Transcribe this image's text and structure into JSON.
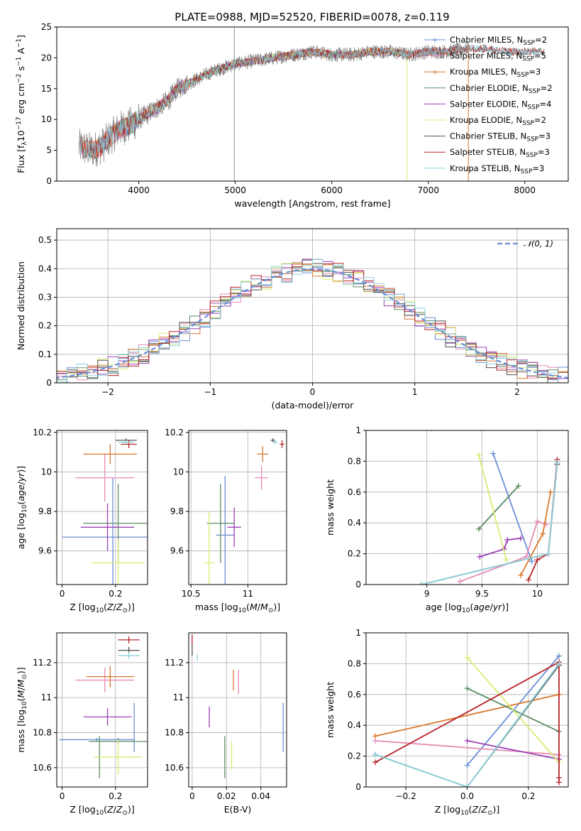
{
  "title": "PLATE=0988, MJD=52520, FIBERID=0078, z=0.119",
  "models": [
    {
      "label": "Chabrier MILES, N<sub>SSP</sub>=2",
      "color": "#6c8ed8"
    },
    {
      "label": "Salpeter MILES, N<sub>SSP</sub>=5",
      "color": "#e58bb5"
    },
    {
      "label": "Kroupa MILES, N<sub>SSP</sub>=3",
      "color": "#d9782d"
    },
    {
      "label": "Chabrier ELODIE, N<sub>SSP</sub>=2",
      "color": "#5a8d62"
    },
    {
      "label": "Salpeter ELODIE, N<sub>SSP</sub>=4",
      "color": "#9c3fb6"
    },
    {
      "label": "Kroupa ELODIE, N<sub>SSP</sub>=2",
      "color": "#d9eb70"
    },
    {
      "label": "Chabrier STELIB, N<sub>SSP</sub>=3",
      "color": "#505050"
    },
    {
      "label": "Salpeter STELIB, N<sub>SSP</sub>=3",
      "color": "#b8242a"
    },
    {
      "label": "Kroupa STELIB, N<sub>SSP</sub>=3",
      "color": "#8fd3de"
    }
  ],
  "chart_data": [
    {
      "id": "spectrum",
      "type": "line",
      "xlabel": "wavelength [Angstrom, rest frame]",
      "ylabel": "Flux [f<sub>λ</sub>10<sup>−17</sup> erg cm<sup>−2</sup> s<sup>−1</sup> A<sup>−1</sup>]",
      "xlim": [
        3150,
        8450
      ],
      "ylim": [
        0,
        25
      ],
      "xticks": [
        4000,
        5000,
        6000,
        7000,
        8000
      ],
      "yticks": [
        0,
        5,
        10,
        15,
        20,
        25
      ],
      "grid": false,
      "legend": "right",
      "data_color": "#808080",
      "continuum": {
        "x": [
          3400,
          3500,
          3600,
          3700,
          3800,
          3900,
          4000,
          4100,
          4200,
          4300,
          4400,
          4600,
          4800,
          5000,
          5200,
          5400,
          5600,
          5800,
          6000,
          6200,
          6400,
          6600,
          6800,
          7000,
          7200,
          7400,
          7600,
          7800,
          8000,
          8200
        ],
        "y": [
          5.5,
          5.0,
          5.5,
          7.0,
          8.5,
          9.0,
          10.0,
          11.0,
          12.0,
          13.0,
          15.0,
          16.5,
          18.0,
          19.0,
          19.5,
          20.0,
          20.5,
          21.0,
          20.5,
          20.5,
          21.0,
          21.0,
          20.5,
          21.0,
          21.0,
          21.5,
          21.5,
          21.0,
          21.0,
          21.0
        ]
      },
      "model_ranges": [
        [
          3400,
          7400
        ],
        [
          3400,
          7400
        ],
        [
          3400,
          7400
        ],
        [
          3900,
          6800
        ],
        [
          3900,
          6800
        ],
        [
          3900,
          6800
        ],
        [
          3400,
          8200
        ],
        [
          3400,
          8200
        ],
        [
          3400,
          8200
        ]
      ]
    },
    {
      "id": "residuals",
      "type": "line",
      "xlabel": "(data-model)/error",
      "ylabel": "Normed distribution",
      "xlim": [
        -2.5,
        2.5
      ],
      "ylim": [
        0,
        0.54
      ],
      "xticks": [
        -2,
        -1,
        0,
        1,
        2
      ],
      "xtick_labels": [
        "−2",
        "−1",
        "0",
        "1",
        "2"
      ],
      "yticks": [
        0,
        0.1,
        0.2,
        0.3,
        0.4,
        0.5
      ],
      "grid": true,
      "legend": "top-right",
      "reference": {
        "label": "𝒩(0, 1)",
        "mean": 0,
        "sigma": 1,
        "color": "#6a8fd8"
      }
    },
    {
      "id": "age-vs-Z",
      "type": "scatter",
      "xlabel": "Z [log<sub>10</sub>(<i>Z</i>/<i>Z</i><sub>⊙</sub>)]",
      "ylabel": "age  [log<sub>10</sub>(<i>age</i>/<i>yr</i>)]",
      "xlim": [
        -0.02,
        0.32
      ],
      "ylim": [
        9.43,
        10.21
      ],
      "xticks": [
        0.0,
        0.2
      ],
      "yticks": [
        9.6,
        9.8,
        10.0,
        10.2
      ],
      "grid": true,
      "points": [
        {
          "model": 0,
          "x": 0.19,
          "y": 9.67,
          "xerr": 0.19,
          "yerr": 0.3
        },
        {
          "model": 1,
          "x": 0.16,
          "y": 9.97,
          "xerr": 0.11,
          "yerr": 0.12
        },
        {
          "model": 2,
          "x": 0.18,
          "y": 10.09,
          "xerr": 0.1,
          "yerr": 0.05
        },
        {
          "model": 3,
          "x": 0.21,
          "y": 9.74,
          "xerr": 0.13,
          "yerr": 0.2
        },
        {
          "model": 4,
          "x": 0.17,
          "y": 9.72,
          "xerr": 0.1,
          "yerr": 0.12
        },
        {
          "model": 5,
          "x": 0.21,
          "y": 9.54,
          "xerr": 0.1,
          "yerr": 0.12
        },
        {
          "model": 6,
          "x": 0.24,
          "y": 10.16,
          "xerr": 0.04,
          "yerr": 0.01
        },
        {
          "model": 7,
          "x": 0.25,
          "y": 10.14,
          "xerr": 0.03,
          "yerr": 0.02
        },
        {
          "model": 8,
          "x": 0.24,
          "y": 10.15,
          "xerr": 0.03,
          "yerr": 0.01
        }
      ]
    },
    {
      "id": "age-vs-mass",
      "type": "scatter",
      "xlabel": "mass [log<sub>10</sub>(<i>M</i>/<i>M</i><sub>⊙</sub>)]",
      "ylabel": "",
      "xlim": [
        10.48,
        11.34
      ],
      "ylim": [
        9.43,
        10.21
      ],
      "xticks": [
        10.5,
        11.0
      ],
      "yticks": [
        9.6,
        9.8,
        10.0,
        10.2
      ],
      "grid": true,
      "points": [
        {
          "model": 0,
          "x": 10.8,
          "y": 9.68,
          "xerr": 0.08,
          "yerr": 0.3
        },
        {
          "model": 1,
          "x": 11.12,
          "y": 9.97,
          "xerr": 0.06,
          "yerr": 0.06
        },
        {
          "model": 2,
          "x": 11.13,
          "y": 10.09,
          "xerr": 0.05,
          "yerr": 0.04
        },
        {
          "model": 3,
          "x": 10.76,
          "y": 9.74,
          "xerr": 0.12,
          "yerr": 0.2
        },
        {
          "model": 4,
          "x": 10.88,
          "y": 9.72,
          "xerr": 0.06,
          "yerr": 0.1
        },
        {
          "model": 5,
          "x": 10.66,
          "y": 9.54,
          "xerr": 0.04,
          "yerr": 0.26
        },
        {
          "model": 6,
          "x": 11.22,
          "y": 10.16,
          "xerr": 0.02,
          "yerr": 0.01
        },
        {
          "model": 7,
          "x": 11.3,
          "y": 10.14,
          "xerr": 0.02,
          "yerr": 0.02
        },
        {
          "model": 8,
          "x": 11.24,
          "y": 10.15,
          "xerr": 0.02,
          "yerr": 0.01
        }
      ]
    },
    {
      "id": "weight-vs-age",
      "type": "line",
      "xlabel": "age  [log<sub>10</sub>(<i>age</i>/<i>yr</i>)]",
      "ylabel": "mass weight",
      "xlim": [
        8.45,
        10.28
      ],
      "ylim": [
        0,
        1.0
      ],
      "xticks": [
        9.0,
        9.5,
        10.0
      ],
      "yticks": [
        0,
        0.2,
        0.4,
        0.6,
        0.8,
        1.0
      ],
      "grid": true,
      "series": [
        {
          "model": 0,
          "x": [
            9.6,
            9.95
          ],
          "y": [
            0.85,
            0.15
          ]
        },
        {
          "model": 1,
          "x": [
            9.3,
            9.9,
            10.0,
            10.08
          ],
          "y": [
            0.02,
            0.18,
            0.41,
            0.39
          ]
        },
        {
          "model": 2,
          "x": [
            9.85,
            10.05,
            10.12
          ],
          "y": [
            0.06,
            0.33,
            0.6
          ]
        },
        {
          "model": 3,
          "x": [
            9.47,
            9.83
          ],
          "y": [
            0.36,
            0.64
          ]
        },
        {
          "model": 4,
          "x": [
            9.48,
            9.7,
            9.73,
            9.85
          ],
          "y": [
            0.18,
            0.23,
            0.29,
            0.3
          ]
        },
        {
          "model": 5,
          "x": [
            9.47,
            9.72
          ],
          "y": [
            0.84,
            0.16
          ]
        },
        {
          "model": 6,
          "x": [
            8.95,
            10.1,
            10.18
          ],
          "y": [
            0.0,
            0.2,
            0.78
          ]
        },
        {
          "model": 7,
          "x": [
            9.92,
            10.0,
            10.1,
            10.18
          ],
          "y": [
            0.03,
            0.16,
            0.2,
            0.81
          ]
        },
        {
          "model": 8,
          "x": [
            8.95,
            10.1,
            10.18
          ],
          "y": [
            0.0,
            0.2,
            0.79
          ]
        }
      ]
    },
    {
      "id": "mass-vs-Z",
      "type": "scatter",
      "xlabel": "Z [log<sub>10</sub>(<i>Z</i>/<i>Z</i><sub>⊙</sub>)]",
      "ylabel": "mass [log<sub>10</sub>(<i>M</i>/<i>M</i><sub>⊙</sub>)]",
      "xlim": [
        -0.02,
        0.32
      ],
      "ylim": [
        10.49,
        11.37
      ],
      "xticks": [
        0.0,
        0.2
      ],
      "yticks": [
        10.6,
        10.8,
        11.0,
        11.2
      ],
      "grid": true,
      "points": [
        {
          "model": 0,
          "x": 0.13,
          "y": 10.76,
          "xerr": 0.14,
          "yerr": 0.01
        },
        {
          "model": 0,
          "x": 0.27,
          "y": 10.83,
          "xerr": 0.0,
          "yerr": 0.14
        },
        {
          "model": 1,
          "x": 0.16,
          "y": 11.1,
          "xerr": 0.11,
          "yerr": 0.07
        },
        {
          "model": 2,
          "x": 0.18,
          "y": 11.12,
          "xerr": 0.09,
          "yerr": 0.06
        },
        {
          "model": 3,
          "x": 0.21,
          "y": 10.75,
          "xerr": 0.11,
          "yerr": 0.02
        },
        {
          "model": 3,
          "x": 0.14,
          "y": 10.66,
          "xerr": 0.0,
          "yerr": 0.12
        },
        {
          "model": 4,
          "x": 0.17,
          "y": 10.89,
          "xerr": 0.09,
          "yerr": 0.05
        },
        {
          "model": 5,
          "x": 0.21,
          "y": 10.66,
          "xerr": 0.09,
          "yerr": 0.1
        },
        {
          "model": 6,
          "x": 0.25,
          "y": 11.27,
          "xerr": 0.04,
          "yerr": 0.02
        },
        {
          "model": 7,
          "x": 0.25,
          "y": 11.33,
          "xerr": 0.04,
          "yerr": 0.02
        },
        {
          "model": 8,
          "x": 0.25,
          "y": 11.24,
          "xerr": 0.04,
          "yerr": 0.02
        }
      ]
    },
    {
      "id": "mass-vs-EBV",
      "type": "scatter",
      "xlabel": "E(B-V)",
      "ylabel": "",
      "xlim": [
        -0.002,
        0.055
      ],
      "ylim": [
        10.49,
        11.37
      ],
      "xticks": [
        0.0,
        0.02,
        0.04
      ],
      "yticks": [
        10.6,
        10.8,
        11.0,
        11.2
      ],
      "grid": true,
      "points": [
        {
          "model": 0,
          "x": 0.053,
          "y": 10.83,
          "xerr": 0,
          "yerr": 0.14
        },
        {
          "model": 1,
          "x": 0.027,
          "y": 11.09,
          "xerr": 0,
          "yerr": 0.07
        },
        {
          "model": 2,
          "x": 0.024,
          "y": 11.1,
          "xerr": 0,
          "yerr": 0.06
        },
        {
          "model": 3,
          "x": 0.019,
          "y": 10.66,
          "xerr": 0,
          "yerr": 0.12
        },
        {
          "model": 4,
          "x": 0.01,
          "y": 10.89,
          "xerr": 0,
          "yerr": 0.06
        },
        {
          "model": 5,
          "x": 0.023,
          "y": 10.67,
          "xerr": 0,
          "yerr": 0.08
        },
        {
          "model": 6,
          "x": 0.0,
          "y": 11.27,
          "xerr": 0,
          "yerr": 0.03
        },
        {
          "model": 7,
          "x": 0.0,
          "y": 11.33,
          "xerr": 0,
          "yerr": 0.03
        },
        {
          "model": 8,
          "x": 0.003,
          "y": 11.23,
          "xerr": 0,
          "yerr": 0.02
        }
      ]
    },
    {
      "id": "weight-vs-Z",
      "type": "line",
      "xlabel": "Z [log<sub>10</sub>(<i>Z</i>/<i>Z</i><sub>⊙</sub>)]",
      "ylabel": "mass weight",
      "xlim": [
        -0.33,
        0.33
      ],
      "ylim": [
        0,
        1.0
      ],
      "xticks": [
        -0.2,
        0.0,
        0.2
      ],
      "xtick_labels": [
        "−0.2",
        "0.0",
        "0.2"
      ],
      "yticks": [
        0,
        0.2,
        0.4,
        0.6,
        0.8,
        1.0
      ],
      "grid": true,
      "series": [
        {
          "model": 0,
          "x": [
            0.0,
            0.3
          ],
          "y": [
            0.14,
            0.85
          ]
        },
        {
          "model": 1,
          "x": [
            -0.3,
            0.3
          ],
          "y": [
            0.3,
            0.21
          ]
        },
        {
          "model": 2,
          "x": [
            -0.3,
            0.3
          ],
          "y": [
            0.33,
            0.6
          ]
        },
        {
          "model": 3,
          "x": [
            0.0,
            0.3
          ],
          "y": [
            0.64,
            0.36
          ]
        },
        {
          "model": 4,
          "x": [
            0.0,
            0.3
          ],
          "y": [
            0.3,
            0.18
          ]
        },
        {
          "model": 5,
          "x": [
            0.0,
            0.3
          ],
          "y": [
            0.84,
            0.16
          ]
        },
        {
          "model": 6,
          "x": [
            -0.3,
            0.0,
            0.3
          ],
          "y": [
            0.21,
            0.0,
            0.79
          ]
        },
        {
          "model": 7,
          "x": [
            -0.3,
            0.3,
            0.3,
            0.3
          ],
          "y": [
            0.16,
            0.81,
            0.03,
            0.06
          ]
        },
        {
          "model": 8,
          "x": [
            -0.3,
            0.0,
            0.3
          ],
          "y": [
            0.21,
            0.0,
            0.8
          ]
        }
      ]
    }
  ]
}
